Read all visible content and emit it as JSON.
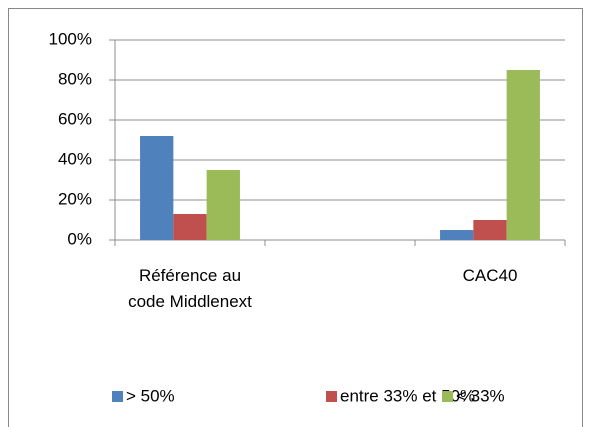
{
  "chart_data": {
    "type": "bar",
    "categories": [
      "Référence au code Middlenext",
      null,
      "CAC40"
    ],
    "series": [
      {
        "name": "> 50%",
        "color": "#4f81bd",
        "values": [
          52,
          null,
          5
        ]
      },
      {
        "name": "entre 33% et 50%",
        "color": "#c0504d",
        "values": [
          13,
          null,
          10
        ]
      },
      {
        "name": "< 33%",
        "color": "#9bbb59",
        "values": [
          35,
          null,
          85
        ]
      }
    ],
    "ylim": [
      0,
      100
    ],
    "yticks": [
      {
        "value": 0,
        "label": "0%"
      },
      {
        "value": 20,
        "label": "20%"
      },
      {
        "value": 40,
        "label": "40%"
      },
      {
        "value": 60,
        "label": "60%"
      },
      {
        "value": 80,
        "label": "80%"
      },
      {
        "value": 100,
        "label": "100%"
      }
    ],
    "grid": true,
    "legend": "bottom"
  }
}
